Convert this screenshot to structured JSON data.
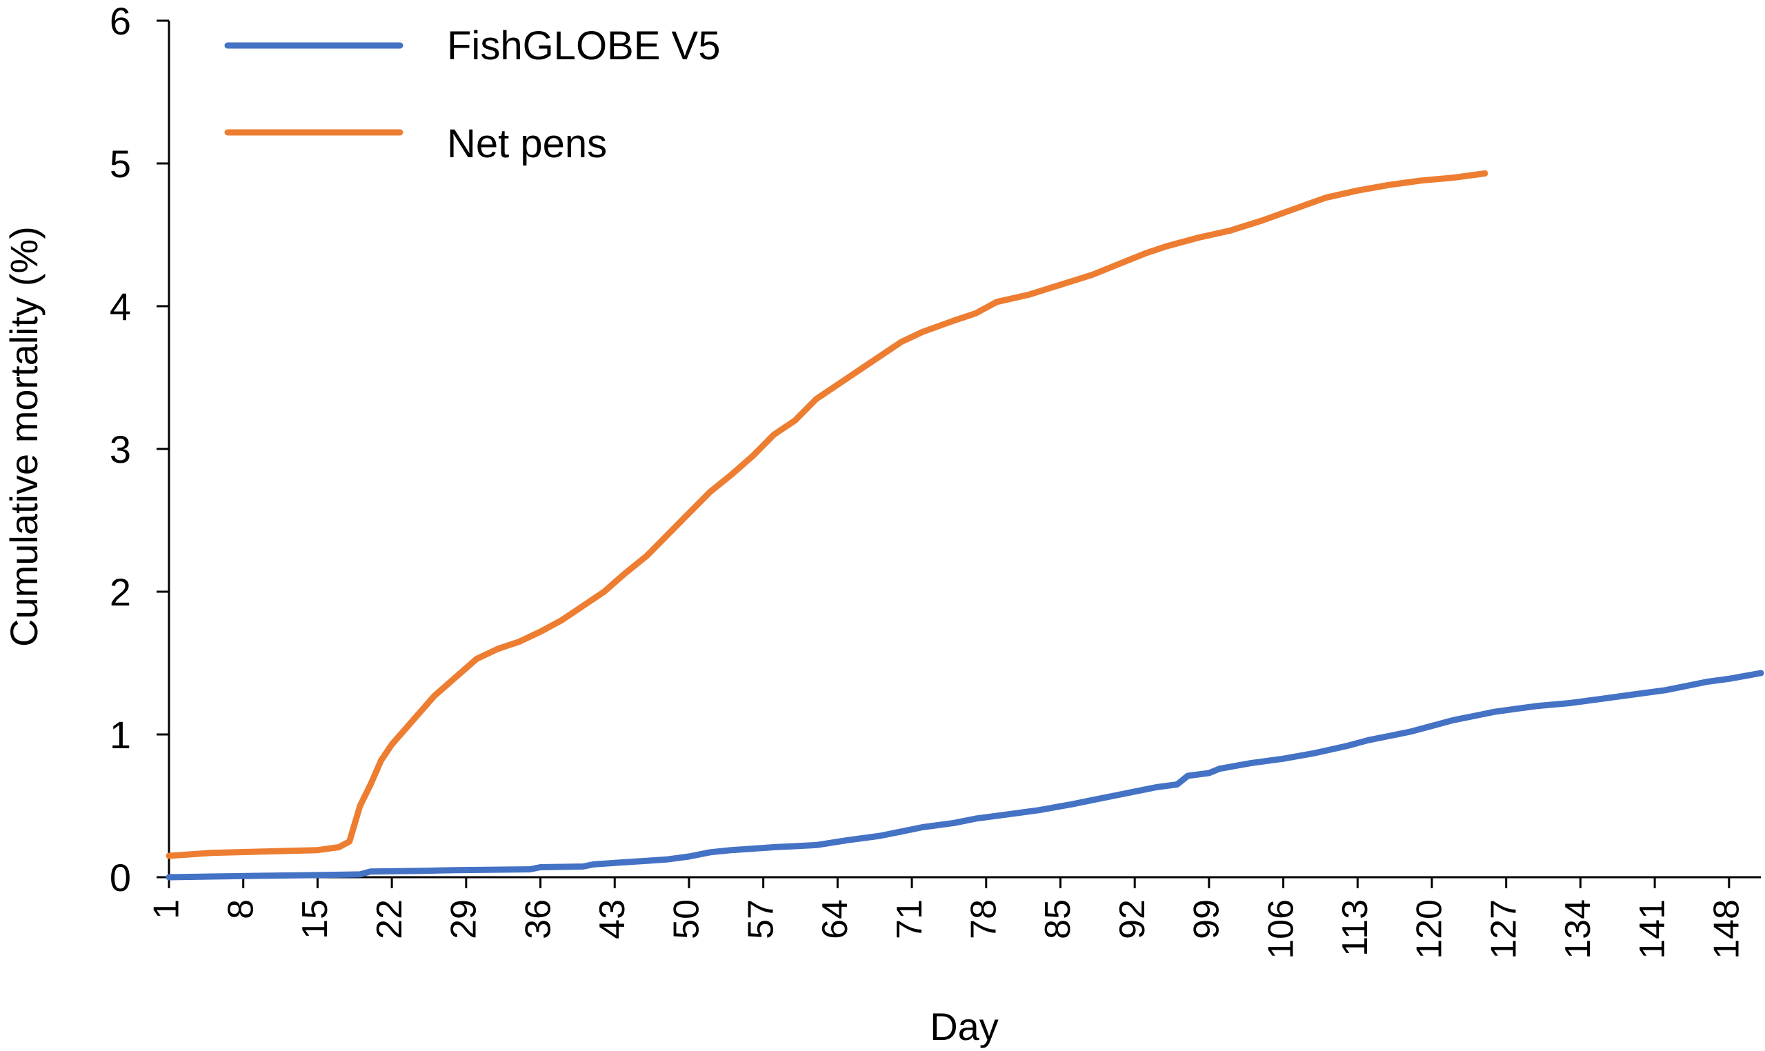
{
  "chart_data": {
    "type": "line",
    "title": "",
    "xlabel": "Day",
    "ylabel": "Cumulative mortality (%)",
    "x_range": [
      1,
      151
    ],
    "ylim": [
      0,
      6
    ],
    "yticks": [
      "0",
      "1",
      "2",
      "3",
      "4",
      "5",
      "6"
    ],
    "xticks": [
      "1",
      "8",
      "15",
      "22",
      "29",
      "36",
      "43",
      "50",
      "57",
      "64",
      "71",
      "78",
      "85",
      "92",
      "99",
      "106",
      "113",
      "120",
      "127",
      "134",
      "141",
      "148"
    ],
    "grid": false,
    "legend_position": "top-left",
    "series": [
      {
        "name": "FishGLOBE V5",
        "color": "#4472C4",
        "points": [
          [
            1,
            0.0
          ],
          [
            5,
            0.005
          ],
          [
            10,
            0.01
          ],
          [
            15,
            0.015
          ],
          [
            19,
            0.02
          ],
          [
            20,
            0.04
          ],
          [
            25,
            0.045
          ],
          [
            28,
            0.05
          ],
          [
            35,
            0.055
          ],
          [
            36,
            0.07
          ],
          [
            40,
            0.075
          ],
          [
            41,
            0.09
          ],
          [
            43,
            0.1
          ],
          [
            46,
            0.115
          ],
          [
            48,
            0.125
          ],
          [
            50,
            0.145
          ],
          [
            52,
            0.175
          ],
          [
            54,
            0.19
          ],
          [
            56,
            0.2
          ],
          [
            58,
            0.21
          ],
          [
            62,
            0.225
          ],
          [
            65,
            0.26
          ],
          [
            68,
            0.29
          ],
          [
            70,
            0.32
          ],
          [
            72,
            0.35
          ],
          [
            75,
            0.38
          ],
          [
            77,
            0.41
          ],
          [
            80,
            0.44
          ],
          [
            83,
            0.47
          ],
          [
            86,
            0.51
          ],
          [
            88,
            0.54
          ],
          [
            90,
            0.57
          ],
          [
            92,
            0.6
          ],
          [
            94,
            0.63
          ],
          [
            96,
            0.65
          ],
          [
            97,
            0.71
          ],
          [
            99,
            0.73
          ],
          [
            100,
            0.76
          ],
          [
            103,
            0.8
          ],
          [
            106,
            0.83
          ],
          [
            109,
            0.87
          ],
          [
            112,
            0.92
          ],
          [
            114,
            0.96
          ],
          [
            116,
            0.99
          ],
          [
            118,
            1.02
          ],
          [
            120,
            1.06
          ],
          [
            122,
            1.1
          ],
          [
            124,
            1.13
          ],
          [
            126,
            1.16
          ],
          [
            128,
            1.18
          ],
          [
            130,
            1.2
          ],
          [
            133,
            1.22
          ],
          [
            136,
            1.25
          ],
          [
            139,
            1.28
          ],
          [
            142,
            1.31
          ],
          [
            144,
            1.34
          ],
          [
            146,
            1.37
          ],
          [
            148,
            1.39
          ],
          [
            151,
            1.43
          ]
        ]
      },
      {
        "name": "Net pens",
        "color": "#ED7D31",
        "points": [
          [
            1,
            0.15
          ],
          [
            5,
            0.17
          ],
          [
            10,
            0.18
          ],
          [
            15,
            0.19
          ],
          [
            16,
            0.2
          ],
          [
            17,
            0.21
          ],
          [
            18,
            0.25
          ],
          [
            19,
            0.5
          ],
          [
            20,
            0.65
          ],
          [
            21,
            0.82
          ],
          [
            22,
            0.93
          ],
          [
            24,
            1.1
          ],
          [
            26,
            1.27
          ],
          [
            28,
            1.4
          ],
          [
            30,
            1.53
          ],
          [
            32,
            1.6
          ],
          [
            34,
            1.65
          ],
          [
            36,
            1.72
          ],
          [
            38,
            1.8
          ],
          [
            40,
            1.9
          ],
          [
            42,
            2.0
          ],
          [
            44,
            2.13
          ],
          [
            46,
            2.25
          ],
          [
            48,
            2.4
          ],
          [
            50,
            2.55
          ],
          [
            52,
            2.7
          ],
          [
            54,
            2.82
          ],
          [
            56,
            2.95
          ],
          [
            58,
            3.1
          ],
          [
            60,
            3.2
          ],
          [
            62,
            3.35
          ],
          [
            64,
            3.45
          ],
          [
            66,
            3.55
          ],
          [
            68,
            3.65
          ],
          [
            70,
            3.75
          ],
          [
            72,
            3.82
          ],
          [
            75,
            3.9
          ],
          [
            77,
            3.95
          ],
          [
            79,
            4.03
          ],
          [
            82,
            4.08
          ],
          [
            85,
            4.15
          ],
          [
            88,
            4.22
          ],
          [
            90,
            4.28
          ],
          [
            93,
            4.37
          ],
          [
            95,
            4.42
          ],
          [
            98,
            4.48
          ],
          [
            101,
            4.53
          ],
          [
            104,
            4.6
          ],
          [
            107,
            4.68
          ],
          [
            110,
            4.76
          ],
          [
            113,
            4.81
          ],
          [
            116,
            4.85
          ],
          [
            119,
            4.88
          ],
          [
            122,
            4.9
          ],
          [
            125,
            4.93
          ]
        ]
      }
    ]
  }
}
